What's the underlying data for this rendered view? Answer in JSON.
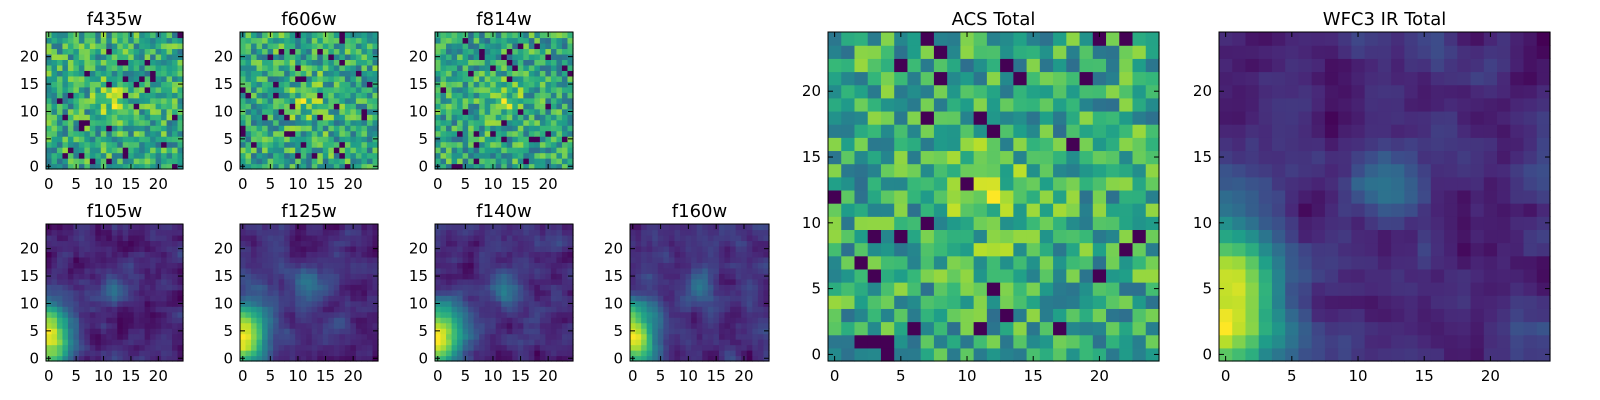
{
  "figure": {
    "title": ""
  },
  "colormap": {
    "name": "viridis",
    "stops": [
      "#440154",
      "#482878",
      "#3e4989",
      "#31688e",
      "#26828e",
      "#1f9e89",
      "#35b779",
      "#6ece58",
      "#b5de2b",
      "#fde725"
    ]
  },
  "chart_data": [
    {
      "type": "heatmap",
      "title": "f435w",
      "rows": 25,
      "cols": 25,
      "seed": 11,
      "pattern": "noise",
      "xlim": [
        0,
        24
      ],
      "ylim": [
        0,
        24
      ],
      "xticks": [
        0,
        5,
        10,
        15,
        20
      ],
      "yticks": [
        0,
        5,
        10,
        15,
        20
      ]
    },
    {
      "type": "heatmap",
      "title": "f606w",
      "rows": 25,
      "cols": 25,
      "seed": 23,
      "pattern": "noise",
      "xlim": [
        0,
        24
      ],
      "ylim": [
        0,
        24
      ],
      "xticks": [
        0,
        5,
        10,
        15,
        20
      ],
      "yticks": [
        0,
        5,
        10,
        15,
        20
      ]
    },
    {
      "type": "heatmap",
      "title": "f814w",
      "rows": 25,
      "cols": 25,
      "seed": 37,
      "pattern": "noise",
      "xlim": [
        0,
        24
      ],
      "ylim": [
        0,
        24
      ],
      "xticks": [
        0,
        5,
        10,
        15,
        20
      ],
      "yticks": [
        0,
        5,
        10,
        15,
        20
      ]
    },
    {
      "type": "heatmap",
      "title": "f105w",
      "rows": 25,
      "cols": 25,
      "seed": 41,
      "pattern": "smooth",
      "xlim": [
        0,
        24
      ],
      "ylim": [
        0,
        24
      ],
      "xticks": [
        0,
        5,
        10,
        15,
        20
      ],
      "yticks": [
        0,
        5,
        10,
        15,
        20
      ]
    },
    {
      "type": "heatmap",
      "title": "f125w",
      "rows": 25,
      "cols": 25,
      "seed": 53,
      "pattern": "smooth",
      "xlim": [
        0,
        24
      ],
      "ylim": [
        0,
        24
      ],
      "xticks": [
        0,
        5,
        10,
        15,
        20
      ],
      "yticks": [
        0,
        5,
        10,
        15,
        20
      ]
    },
    {
      "type": "heatmap",
      "title": "f140w",
      "rows": 25,
      "cols": 25,
      "seed": 67,
      "pattern": "smooth",
      "xlim": [
        0,
        24
      ],
      "ylim": [
        0,
        24
      ],
      "xticks": [
        0,
        5,
        10,
        15,
        20
      ],
      "yticks": [
        0,
        5,
        10,
        15,
        20
      ]
    },
    {
      "type": "heatmap",
      "title": "f160w",
      "rows": 25,
      "cols": 25,
      "seed": 79,
      "pattern": "smooth",
      "xlim": [
        0,
        24
      ],
      "ylim": [
        0,
        24
      ],
      "xticks": [
        0,
        5,
        10,
        15,
        20
      ],
      "yticks": [
        0,
        5,
        10,
        15,
        20
      ]
    },
    {
      "type": "heatmap",
      "title": "ACS Total",
      "rows": 25,
      "cols": 25,
      "seed": 97,
      "pattern": "noise",
      "xlim": [
        0,
        24
      ],
      "ylim": [
        0,
        24
      ],
      "xticks": [
        0,
        5,
        10,
        15,
        20
      ],
      "yticks": [
        0,
        5,
        10,
        15,
        20
      ]
    },
    {
      "type": "heatmap",
      "title": "WFC3 IR Total",
      "rows": 25,
      "cols": 25,
      "seed": 103,
      "pattern": "smooth",
      "xlim": [
        0,
        24
      ],
      "ylim": [
        0,
        24
      ],
      "xticks": [
        0,
        5,
        10,
        15,
        20
      ],
      "yticks": [
        0,
        5,
        10,
        15,
        20
      ]
    }
  ]
}
